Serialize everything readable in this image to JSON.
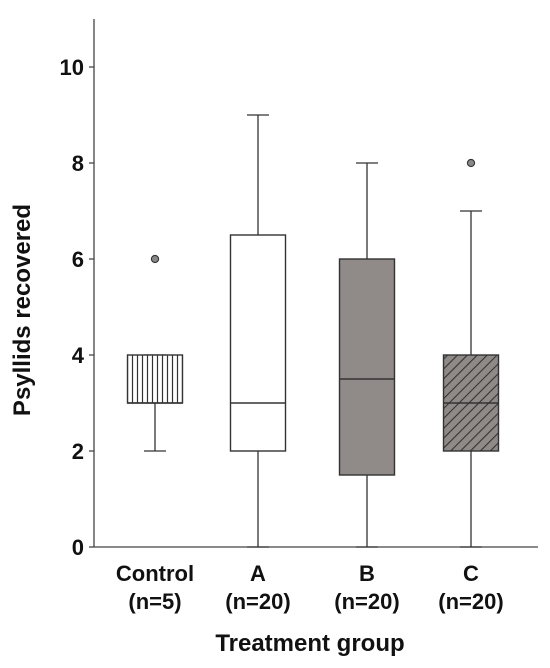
{
  "chart_data": {
    "type": "box",
    "title": "",
    "xlabel": "Treatment group",
    "ylabel": "Psyllids recovered",
    "ylim": [
      0,
      11
    ],
    "yticks": [
      0,
      2,
      4,
      6,
      8,
      10
    ],
    "grid": false,
    "groups": [
      {
        "label": "Control",
        "n_label": "(n=5)",
        "fill": "vertical-stripes",
        "fill_color": "#ffffff",
        "whisker_low": 2,
        "q1": 3,
        "median": 3,
        "q3": 4,
        "whisker_high": 4,
        "outliers": [
          6
        ]
      },
      {
        "label": "A",
        "n_label": "(n=20)",
        "fill": "solid",
        "fill_color": "#ffffff",
        "whisker_low": 0,
        "q1": 2,
        "median": 3,
        "q3": 6.5,
        "whisker_high": 9,
        "outliers": []
      },
      {
        "label": "B",
        "n_label": "(n=20)",
        "fill": "solid",
        "fill_color": "#908a89",
        "whisker_low": 0,
        "q1": 1.5,
        "median": 3.5,
        "q3": 6,
        "whisker_high": 8,
        "outliers": []
      },
      {
        "label": "C",
        "n_label": "(n=20)",
        "fill": "diagonal-hatch",
        "fill_color": "#8f8a88",
        "whisker_low": 0,
        "q1": 2,
        "median": 3,
        "q3": 4,
        "whisker_high": 7,
        "outliers": [
          8
        ]
      }
    ]
  }
}
